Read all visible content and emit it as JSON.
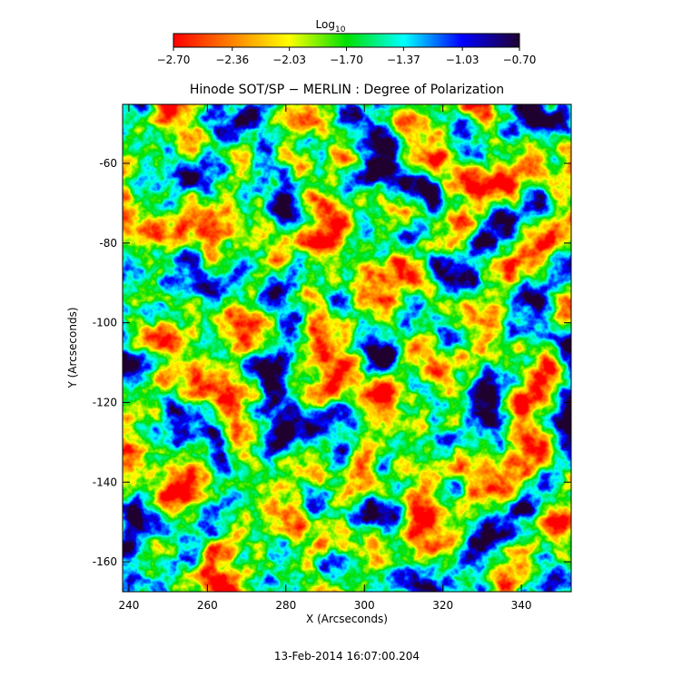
{
  "chart_data": {
    "type": "image",
    "title": "Hinode SOT/SP − MERLIN : Degree of Polarization",
    "x_label": "X (Arcseconds)",
    "y_label": "Y (Arcseconds)",
    "footer": "13-Feb-2014 16:07:00.204",
    "xlim": [
      238.4,
      352.7
    ],
    "xticks": [
      240,
      260,
      280,
      300,
      320,
      340
    ],
    "ylim": [
      -167.5,
      -45.2
    ],
    "yticks": [
      -160,
      -140,
      -120,
      -100,
      -80,
      -60
    ],
    "colorbar": {
      "label": "Log",
      "label_subscript": "10",
      "lim": [
        -2.7,
        -0.7
      ],
      "ticks": [
        {
          "value": -2.7,
          "label": "−2.70"
        },
        {
          "value": -2.36,
          "label": "−2.36"
        },
        {
          "value": -2.03,
          "label": "−2.03"
        },
        {
          "value": -1.7,
          "label": "−1.70"
        },
        {
          "value": -1.37,
          "label": "−1.37"
        },
        {
          "value": -1.03,
          "label": "−1.03"
        },
        {
          "value": -0.7,
          "label": "−0.70"
        }
      ],
      "colors": [
        "#ff0000",
        "#ff8000",
        "#ffff00",
        "#00e000",
        "#00ffff",
        "#0000ff",
        "#200030"
      ]
    }
  }
}
